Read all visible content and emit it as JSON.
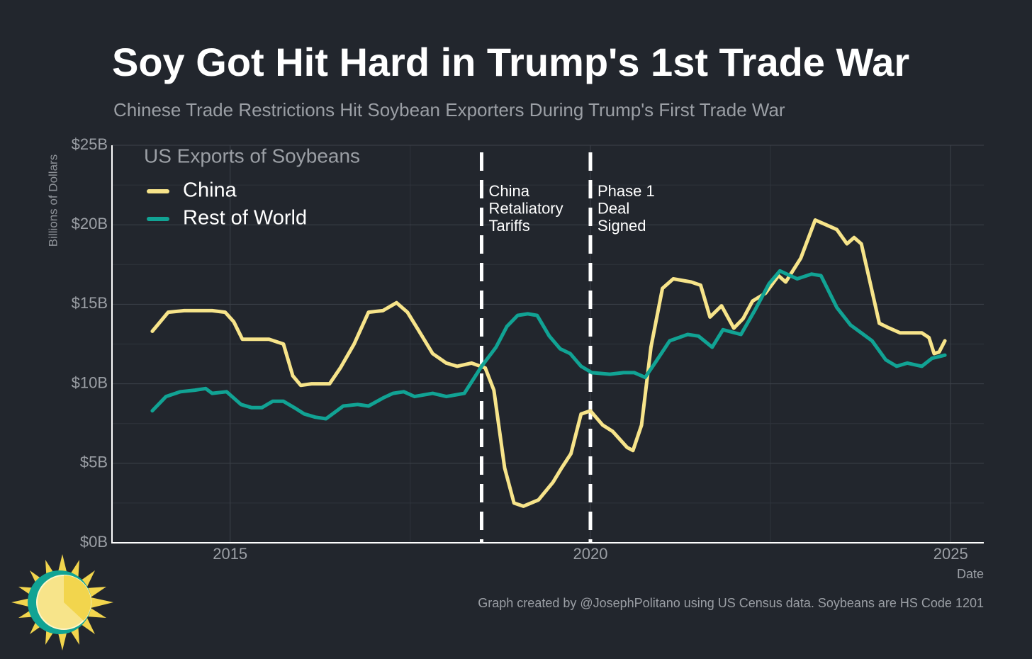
{
  "chart_data": {
    "type": "line",
    "title": "Soy Got Hit Hard in Trump's 1st Trade War",
    "subtitle": "Chinese Trade Restrictions Hit Soybean Exporters During Trump's First Trade War",
    "legend_title": "US Exports of Soybeans",
    "legend": "top-left",
    "y_label": "Billions of Dollars",
    "x_label": "Date",
    "caption": "Graph created by @JosephPolitano using US Census data. Soybeans are HS Code 1201",
    "grid": true,
    "xlim": [
      2013.36,
      2025.46
    ],
    "xticks": [
      2015,
      2020,
      2025
    ],
    "minor_xticks": [
      2017.5,
      2022.5
    ],
    "ylim": [
      0,
      25
    ],
    "yticks": [
      {
        "value": 0,
        "label": "$0B"
      },
      {
        "value": 5,
        "label": "$5B"
      },
      {
        "value": 10,
        "label": "$10B"
      },
      {
        "value": 15,
        "label": "$15B"
      },
      {
        "value": 20,
        "label": "$20B"
      },
      {
        "value": 25,
        "label": "$25B"
      }
    ],
    "minor_yticks": [
      2.5,
      7.5,
      12.5,
      17.5,
      22.5
    ],
    "annotations": [
      {
        "x": 2018.49,
        "lines": [
          "China",
          "Retaliatory",
          "Tariffs"
        ]
      },
      {
        "x": 2020.0,
        "lines": [
          "Phase 1",
          "Deal",
          "Signed"
        ]
      }
    ],
    "series": [
      {
        "name": "China",
        "color": "#f7e48a",
        "x": [
          2013.92,
          2014.14,
          2014.36,
          2014.75,
          2014.93,
          2015.05,
          2015.17,
          2015.54,
          2015.74,
          2015.87,
          2015.98,
          2016.13,
          2016.38,
          2016.53,
          2016.72,
          2016.92,
          2017.12,
          2017.31,
          2017.46,
          2017.61,
          2017.81,
          2018.0,
          2018.15,
          2018.35,
          2018.54,
          2018.66,
          2018.81,
          2018.94,
          2019.07,
          2019.28,
          2019.48,
          2019.6,
          2019.73,
          2019.87,
          2020.0,
          2020.17,
          2020.31,
          2020.51,
          2020.59,
          2020.71,
          2020.84,
          2021.0,
          2021.15,
          2021.4,
          2021.53,
          2021.66,
          2021.82,
          2021.99,
          2022.12,
          2022.25,
          2022.43,
          2022.61,
          2022.71,
          2022.92,
          2023.12,
          2023.27,
          2023.42,
          2023.56,
          2023.66,
          2023.76,
          2023.86,
          2024.01,
          2024.15,
          2024.3,
          2024.6,
          2024.7,
          2024.77,
          2024.84,
          2024.92
        ],
        "values": [
          13.3,
          14.5,
          14.6,
          14.6,
          14.5,
          13.9,
          12.8,
          12.8,
          12.5,
          10.5,
          9.9,
          10.0,
          10.0,
          11.0,
          12.5,
          14.5,
          14.6,
          15.1,
          14.5,
          13.4,
          11.9,
          11.3,
          11.1,
          11.3,
          11.0,
          9.6,
          4.7,
          2.5,
          2.3,
          2.7,
          3.8,
          4.7,
          5.6,
          8.1,
          8.3,
          7.4,
          7.0,
          6.0,
          5.8,
          7.4,
          12.3,
          16.0,
          16.6,
          16.4,
          16.2,
          14.2,
          14.9,
          13.5,
          14.1,
          15.2,
          15.7,
          16.8,
          16.4,
          17.9,
          20.3,
          20.0,
          19.7,
          18.8,
          19.2,
          18.8,
          16.8,
          13.8,
          13.5,
          13.2,
          13.2,
          12.9,
          11.9,
          12.0,
          12.7
        ]
      },
      {
        "name": "Rest of World",
        "color": "#11a394",
        "x": [
          2013.92,
          2014.11,
          2014.31,
          2014.51,
          2014.66,
          2014.75,
          2014.95,
          2015.15,
          2015.3,
          2015.44,
          2015.59,
          2015.74,
          2015.89,
          2016.03,
          2016.18,
          2016.33,
          2016.57,
          2016.77,
          2016.92,
          2017.12,
          2017.26,
          2017.41,
          2017.56,
          2017.81,
          2018.0,
          2018.25,
          2018.49,
          2018.69,
          2018.84,
          2018.99,
          2019.13,
          2019.26,
          2019.43,
          2019.58,
          2019.72,
          2019.87,
          2020.02,
          2020.27,
          2020.46,
          2020.61,
          2020.76,
          2020.91,
          2021.1,
          2021.35,
          2021.5,
          2021.69,
          2021.84,
          2022.09,
          2022.28,
          2022.48,
          2022.63,
          2022.87,
          2023.07,
          2023.2,
          2023.42,
          2023.61,
          2023.76,
          2023.91,
          2024.1,
          2024.25,
          2024.4,
          2024.6,
          2024.74,
          2024.92
        ],
        "values": [
          8.3,
          9.2,
          9.5,
          9.6,
          9.7,
          9.4,
          9.5,
          8.7,
          8.5,
          8.5,
          8.9,
          8.9,
          8.5,
          8.1,
          7.9,
          7.8,
          8.6,
          8.7,
          8.6,
          9.1,
          9.4,
          9.5,
          9.2,
          9.4,
          9.2,
          9.4,
          11.1,
          12.3,
          13.6,
          14.3,
          14.4,
          14.3,
          13.0,
          12.2,
          11.9,
          11.1,
          10.7,
          10.6,
          10.7,
          10.7,
          10.4,
          11.4,
          12.7,
          13.1,
          13.0,
          12.3,
          13.4,
          13.1,
          14.6,
          16.3,
          17.1,
          16.6,
          16.9,
          16.8,
          14.8,
          13.7,
          13.2,
          12.7,
          11.5,
          11.1,
          11.3,
          11.1,
          11.6,
          11.8
        ]
      }
    ]
  }
}
